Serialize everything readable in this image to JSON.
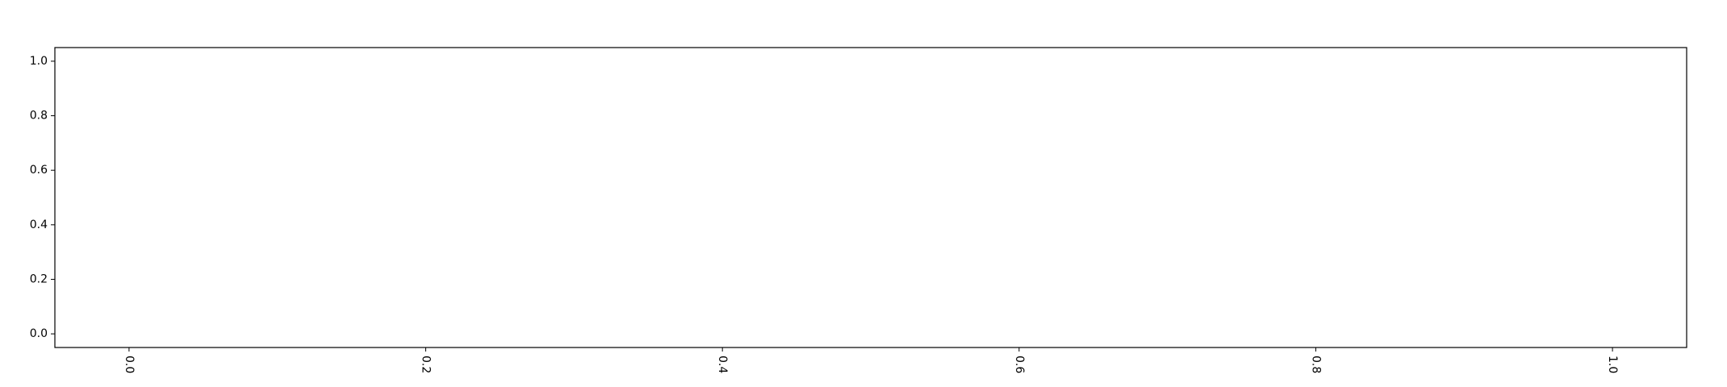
{
  "chart_data": {
    "type": "line",
    "title": "",
    "xlabel": "",
    "ylabel": "",
    "series": [],
    "xlim": [
      -0.05,
      1.05
    ],
    "ylim": [
      -0.05,
      1.05
    ],
    "x_ticks": [
      {
        "value": 0.0,
        "label": "0.0"
      },
      {
        "value": 0.2,
        "label": "0.2"
      },
      {
        "value": 0.4,
        "label": "0.4"
      },
      {
        "value": 0.6,
        "label": "0.6"
      },
      {
        "value": 0.8,
        "label": "0.8"
      },
      {
        "value": 1.0,
        "label": "1.0"
      }
    ],
    "y_ticks": [
      {
        "value": 0.0,
        "label": "0.0"
      },
      {
        "value": 0.2,
        "label": "0.2"
      },
      {
        "value": 0.4,
        "label": "0.4"
      },
      {
        "value": 0.6,
        "label": "0.6"
      },
      {
        "value": 0.8,
        "label": "0.8"
      },
      {
        "value": 1.0,
        "label": "1.0"
      }
    ],
    "x_tick_label_rotation": -90,
    "grid": false,
    "legend": "none",
    "colors": {
      "axis": "#000000",
      "background": "#ffffff"
    }
  }
}
